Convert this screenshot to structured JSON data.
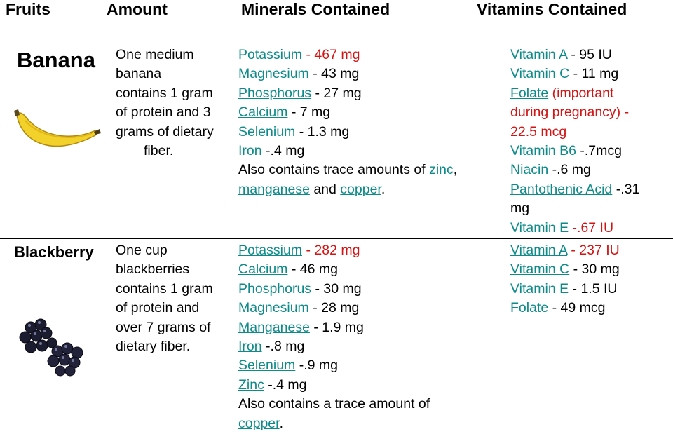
{
  "headers": {
    "fruits": "Fruits",
    "amount": "Amount",
    "minerals": "Minerals Contained",
    "vitamins": "Vitamins Contained"
  },
  "rows": [
    {
      "fruit": "Banana",
      "image_icon": "banana-image",
      "amount_lines": [
        "One medium",
        "banana",
        "contains 1 gram",
        "of protein and 3",
        "grams of dietary",
        "fiber."
      ],
      "minerals": [
        {
          "name": "Potassium",
          "value": " - 467 mg",
          "value_red": true
        },
        {
          "name": "Magnesium",
          "value": " - 43 mg"
        },
        {
          "name": "Phosphorus",
          "value": " - 27 mg"
        },
        {
          "name": "Calcium",
          "value": " - 7 mg"
        },
        {
          "name": "Selenium",
          "value": " - 1.3 mg"
        },
        {
          "name": "Iron",
          "value": " -.4 mg"
        }
      ],
      "minerals_note": {
        "line1_text": "Also contains trace amounts of ",
        "link1": "zinc",
        "line1_end": ",",
        "link2": "manganese",
        "mid": " and ",
        "link3": "copper",
        "end": "."
      },
      "vitamins": {
        "vitA_name": "Vitamin A",
        "vitA_value": " - 95 IU",
        "vitC_name": "Vitamin C",
        "vitC_value": " - 11 mg",
        "folate_name": "Folate",
        "folate_value_1": " (important",
        "folate_value_2": "during pregnancy) -",
        "folate_value_3": "22.5 mcg",
        "b6_name": "Vitamin B6",
        "b6_value": " -.7mcg",
        "niacin_name": "Niacin",
        "niacin_value": " -.6 mg",
        "panto_name": "Pantothenic Acid",
        "panto_value_1": " -.31",
        "panto_value_2": "mg",
        "vitE_name": "Vitamin E",
        "vitE_value": " -.67 IU"
      }
    },
    {
      "fruit": "Blackberry",
      "image_icon": "blackberry-image",
      "amount_lines": [
        "One cup",
        "blackberries",
        "contains 1 gram",
        "of protein and",
        "over 7 grams of",
        "dietary fiber."
      ],
      "minerals": [
        {
          "name": "Potassium",
          "value": " - 282 mg",
          "value_red": true
        },
        {
          "name": "Calcium",
          "value": " - 46 mg"
        },
        {
          "name": "Phosphorus",
          "value": " - 30 mg"
        },
        {
          "name": "Magnesium",
          "value": " - 28 mg"
        },
        {
          "name": "Manganese",
          "value": " - 1.9 mg"
        },
        {
          "name": "Iron",
          "value": " -.8 mg"
        },
        {
          "name": "Selenium",
          "value": " -.9 mg"
        },
        {
          "name": "Zinc",
          "value": " -.4 mg"
        }
      ],
      "minerals_note": {
        "line1_text": "Also contains a trace amount of",
        "link1": "copper",
        "end": "."
      },
      "vitamins": [
        {
          "name": "Vitamin A",
          "value": " - 237 IU",
          "value_red": true
        },
        {
          "name": "Vitamin C",
          "value": " - 30 mg"
        },
        {
          "name": "Vitamin E",
          "value": " - 1.5 IU"
        },
        {
          "name": "Folate",
          "value": " - 49 mcg"
        }
      ]
    }
  ],
  "colors": {
    "link": "#0e8a8a",
    "highlight": "#d21414",
    "text": "#000000"
  }
}
